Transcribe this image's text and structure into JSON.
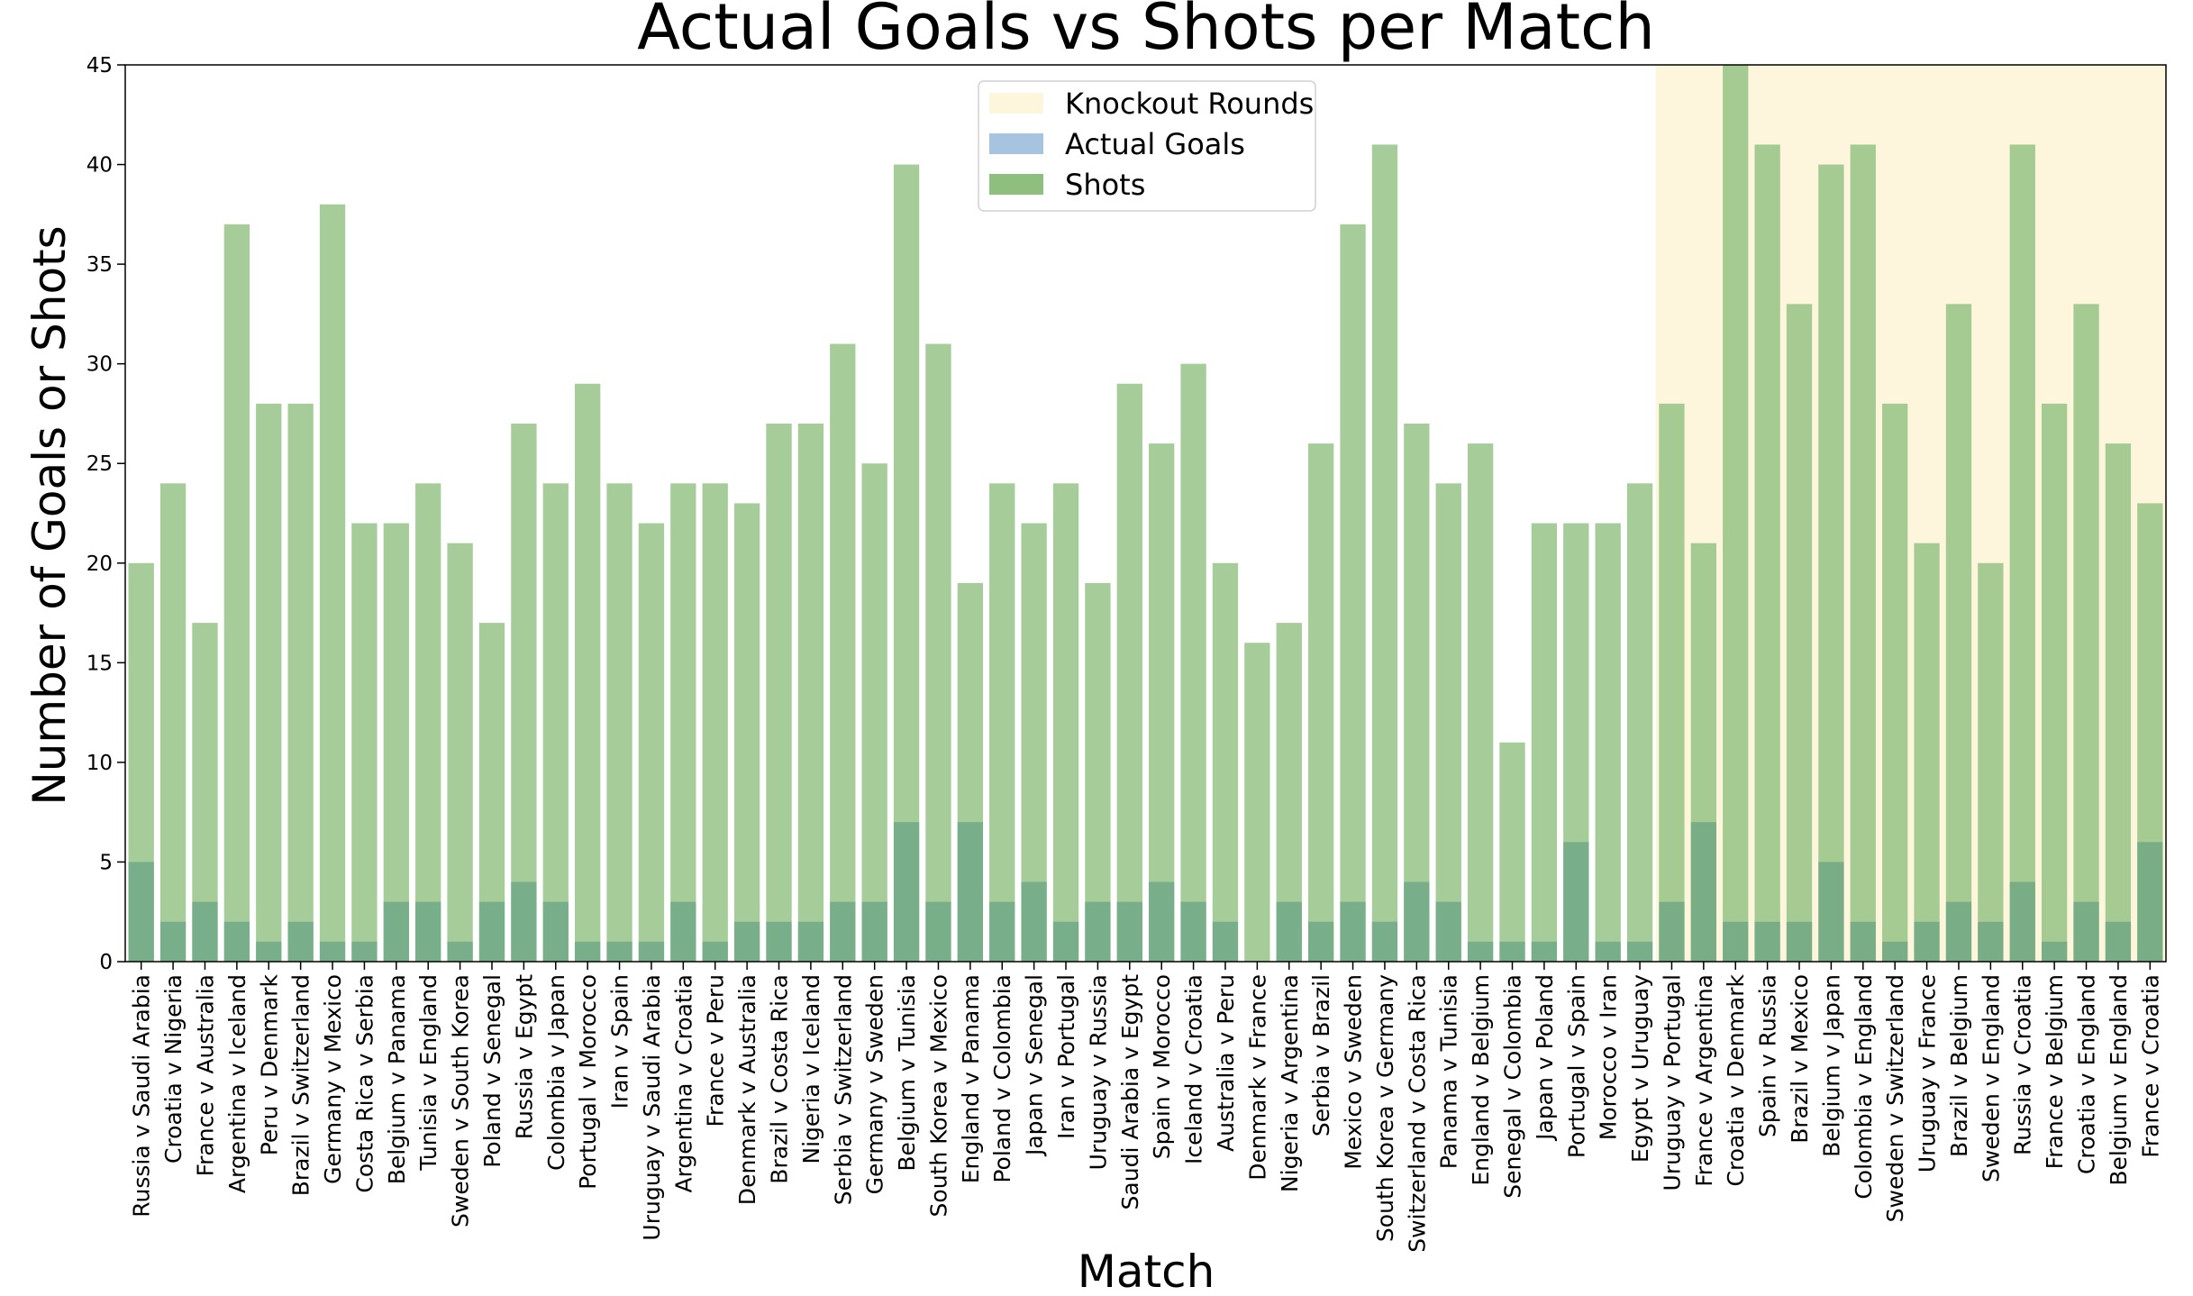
{
  "chart_data": {
    "type": "bar",
    "title": "Actual Goals vs Shots per Match",
    "xlabel": "Match",
    "ylabel": "Number of Goals or Shots",
    "ylim": [
      0,
      45
    ],
    "yticks": [
      "0",
      "5",
      "10",
      "15",
      "20",
      "25",
      "30",
      "35",
      "40",
      "45"
    ],
    "grid": false,
    "legend_position": "top-center",
    "categories": [
      "Russia v Saudi Arabia",
      "Croatia v Nigeria",
      "France v Australia",
      "Argentina v Iceland",
      "Peru v Denmark",
      "Brazil v Switzerland",
      "Germany v Mexico",
      "Costa Rica v Serbia",
      "Belgium v Panama",
      "Tunisia v England",
      "Sweden v South Korea",
      "Poland v Senegal",
      "Russia v Egypt",
      "Colombia v Japan",
      "Portugal v Morocco",
      "Iran v Spain",
      "Uruguay v Saudi Arabia",
      "Argentina v Croatia",
      "France v Peru",
      "Denmark v Australia",
      "Brazil v Costa Rica",
      "Nigeria v Iceland",
      "Serbia v Switzerland",
      "Germany v Sweden",
      "Belgium v Tunisia",
      "South Korea v Mexico",
      "England v Panama",
      "Poland v Colombia",
      "Japan v Senegal",
      "Iran v Portugal",
      "Uruguay v Russia",
      "Saudi Arabia v Egypt",
      "Spain v Morocco",
      "Iceland v Croatia",
      "Australia v Peru",
      "Denmark v France",
      "Nigeria v Argentina",
      "Serbia v Brazil",
      "Mexico v Sweden",
      "South Korea v Germany",
      "Switzerland v Costa Rica",
      "Panama v Tunisia",
      "England v Belgium",
      "Senegal v Colombia",
      "Japan v Poland",
      "Portugal v Spain",
      "Morocco v Iran",
      "Egypt v Uruguay",
      "Uruguay v Portugal",
      "France v Argentina",
      "Croatia v Denmark",
      "Spain v Russia",
      "Brazil v Mexico",
      "Belgium v Japan",
      "Colombia v England",
      "Sweden v Switzerland",
      "Uruguay v France",
      "Brazil v Belgium",
      "Sweden v England",
      "Russia v Croatia",
      "France v Belgium",
      "Croatia v England",
      "Belgium v England",
      "France v Croatia"
    ],
    "series": [
      {
        "name": "Shots",
        "color": "#8fbf7f",
        "values": [
          20,
          24,
          17,
          37,
          28,
          28,
          38,
          22,
          22,
          24,
          21,
          17,
          27,
          24,
          29,
          24,
          22,
          24,
          24,
          23,
          27,
          27,
          31,
          25,
          40,
          31,
          19,
          24,
          22,
          24,
          19,
          29,
          26,
          30,
          20,
          16,
          17,
          26,
          37,
          41,
          27,
          24,
          26,
          11,
          22,
          22,
          22,
          24,
          28,
          21,
          45,
          41,
          33,
          40,
          41,
          28,
          21,
          33,
          20,
          41,
          28,
          33,
          26,
          23
        ]
      },
      {
        "name": "Actual Goals",
        "color": "#a6c4df",
        "values": [
          5,
          2,
          3,
          2,
          1,
          2,
          1,
          1,
          3,
          3,
          1,
          3,
          4,
          3,
          1,
          1,
          1,
          3,
          1,
          2,
          2,
          2,
          3,
          3,
          7,
          3,
          7,
          3,
          4,
          2,
          3,
          3,
          4,
          3,
          2,
          0,
          3,
          2,
          3,
          2,
          4,
          3,
          1,
          1,
          1,
          6,
          1,
          1,
          3,
          7,
          2,
          2,
          2,
          5,
          2,
          1,
          2,
          3,
          2,
          4,
          1,
          3,
          2,
          6
        ]
      }
    ],
    "knockout_region": {
      "label": "Knockout Rounds",
      "start_index": 48,
      "end_index": 63,
      "color": "#fdf6dc"
    },
    "legend": [
      "Knockout Rounds",
      "Actual Goals",
      "Shots"
    ]
  }
}
